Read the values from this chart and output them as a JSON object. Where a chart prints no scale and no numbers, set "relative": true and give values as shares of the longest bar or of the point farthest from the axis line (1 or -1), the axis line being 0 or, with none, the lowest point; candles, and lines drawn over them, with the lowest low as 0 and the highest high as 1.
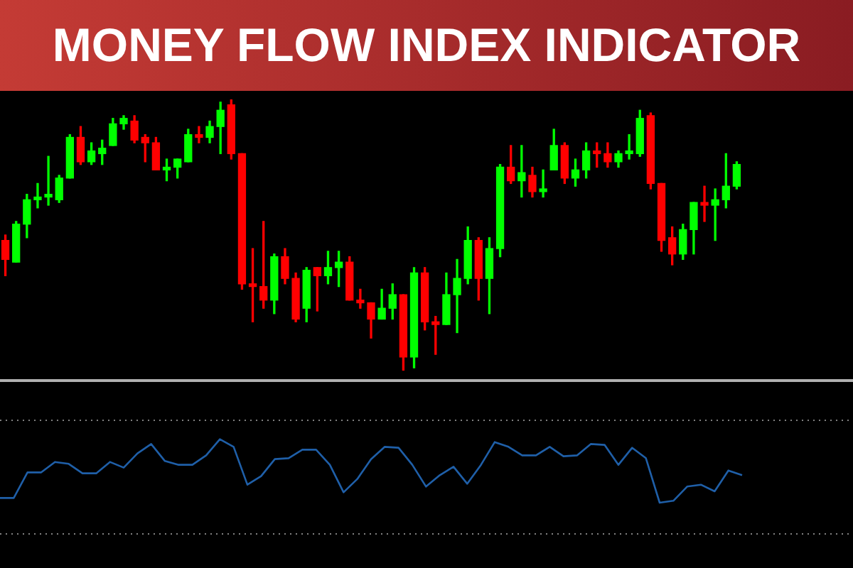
{
  "chart_data": [
    {
      "type": "candlestick",
      "title": "MONEY FLOW INDEX INDICATOR",
      "relative": true,
      "tick_labels": false,
      "categories": [
        null,
        null,
        null,
        null,
        null,
        null,
        null,
        null,
        null,
        null,
        null,
        null,
        null,
        null,
        null,
        null,
        null,
        null,
        null,
        null,
        null,
        null,
        null,
        null,
        null,
        null,
        null,
        null,
        null,
        null,
        null,
        null,
        null,
        null,
        null,
        null,
        null,
        null,
        null,
        null,
        null,
        null,
        null,
        null,
        null,
        null,
        null,
        null,
        null,
        null,
        null,
        null,
        null,
        null,
        null,
        null,
        null,
        null,
        null,
        null,
        null,
        null,
        null,
        null,
        null,
        null,
        null,
        null,
        null
      ],
      "ohlc": [
        [
          0.48,
          0.5,
          0.35,
          0.41
        ],
        [
          0.4,
          0.55,
          0.4,
          0.54
        ],
        [
          0.54,
          0.65,
          0.49,
          0.63
        ],
        [
          0.63,
          0.69,
          0.6,
          0.64
        ],
        [
          0.64,
          0.79,
          0.61,
          0.65
        ],
        [
          0.63,
          0.72,
          0.62,
          0.71
        ],
        [
          0.71,
          0.87,
          0.71,
          0.86
        ],
        [
          0.86,
          0.9,
          0.76,
          0.77
        ],
        [
          0.77,
          0.84,
          0.76,
          0.81
        ],
        [
          0.8,
          0.85,
          0.76,
          0.82
        ],
        [
          0.83,
          0.93,
          0.83,
          0.91
        ],
        [
          0.91,
          0.94,
          0.89,
          0.93
        ],
        [
          0.92,
          0.94,
          0.84,
          0.85
        ],
        [
          0.86,
          0.87,
          0.77,
          0.84
        ],
        [
          0.84,
          0.86,
          0.74,
          0.74
        ],
        [
          0.74,
          0.78,
          0.7,
          0.75
        ],
        [
          0.75,
          0.78,
          0.71,
          0.78
        ],
        [
          0.77,
          0.89,
          0.77,
          0.87
        ],
        [
          0.87,
          0.9,
          0.84,
          0.86
        ],
        [
          0.86,
          0.92,
          0.84,
          0.9
        ],
        [
          0.9,
          0.99,
          0.8,
          0.96
        ],
        [
          0.98,
          1,
          0.78,
          0.8
        ],
        [
          0.8,
          0.8,
          0.3,
          0.32
        ],
        [
          0.32,
          0.45,
          0.18,
          0.31
        ],
        [
          0.31,
          0.55,
          0.23,
          0.26
        ],
        [
          0.26,
          0.43,
          0.21,
          0.42
        ],
        [
          0.42,
          0.45,
          0.32,
          0.34
        ],
        [
          0.34,
          0.36,
          0.18,
          0.19
        ],
        [
          0.23,
          0.38,
          0.18,
          0.37
        ],
        [
          0.38,
          0.38,
          0.22,
          0.35
        ],
        [
          0.35,
          0.44,
          0.32,
          0.38
        ],
        [
          0.38,
          0.44,
          0.31,
          0.4
        ],
        [
          0.4,
          0.42,
          0.26,
          0.26
        ],
        [
          0.26,
          0.3,
          0.23,
          0.25
        ],
        [
          0.25,
          0.25,
          0.12,
          0.19
        ],
        [
          0.19,
          0.3,
          0.19,
          0.23
        ],
        [
          0.23,
          0.32,
          0.19,
          0.28
        ],
        [
          0.28,
          0.28,
          0,
          0.05
        ],
        [
          0.05,
          0.38,
          0.01,
          0.36
        ],
        [
          0.36,
          0.38,
          0.15,
          0.18
        ],
        [
          0.18,
          0.2,
          0.06,
          0.17
        ],
        [
          0.17,
          0.36,
          0.17,
          0.28
        ],
        [
          0.28,
          0.41,
          0.14,
          0.34
        ],
        [
          0.34,
          0.53,
          0.32,
          0.48
        ],
        [
          0.48,
          0.49,
          0.26,
          0.34
        ],
        [
          0.34,
          0.49,
          0.21,
          0.45
        ],
        [
          0.45,
          0.76,
          0.42,
          0.75
        ],
        [
          0.75,
          0.83,
          0.69,
          0.7
        ],
        [
          0.7,
          0.83,
          0.64,
          0.73
        ],
        [
          0.72,
          0.75,
          0.64,
          0.66
        ],
        [
          0.66,
          0.74,
          0.64,
          0.67
        ],
        [
          0.74,
          0.89,
          0.74,
          0.83
        ],
        [
          0.83,
          0.84,
          0.69,
          0.71
        ],
        [
          0.71,
          0.78,
          0.68,
          0.74
        ],
        [
          0.74,
          0.84,
          0.71,
          0.81
        ],
        [
          0.81,
          0.84,
          0.75,
          0.8
        ],
        [
          0.8,
          0.84,
          0.75,
          0.77
        ],
        [
          0.77,
          0.81,
          0.75,
          0.8
        ],
        [
          0.8,
          0.87,
          0.78,
          0.81
        ],
        [
          0.8,
          0.96,
          0.79,
          0.93
        ],
        [
          0.94,
          0.95,
          0.67,
          0.69
        ],
        [
          0.69,
          0.69,
          0.44,
          0.48
        ],
        [
          0.49,
          0.53,
          0.39,
          0.43
        ],
        [
          0.43,
          0.54,
          0.41,
          0.52
        ],
        [
          0.52,
          0.62,
          0.43,
          0.62
        ],
        [
          0.62,
          0.68,
          0.55,
          0.61
        ],
        [
          0.61,
          0.67,
          0.48,
          0.63
        ],
        [
          0.63,
          0.8,
          0.6,
          0.68
        ],
        [
          0.68,
          0.77,
          0.67,
          0.76
        ]
      ],
      "colors": [
        "#ff0000",
        "#00ff00",
        "#00ff00",
        "#00ff00",
        "#00ff00",
        "#00ff00",
        "#00ff00",
        "#ff0000",
        "#00ff00",
        "#00ff00",
        "#00ff00",
        "#00ff00",
        "#ff0000",
        "#ff0000",
        "#ff0000",
        "#00ff00",
        "#00ff00",
        "#00ff00",
        "#ff0000",
        "#00ff00",
        "#00ff00",
        "#ff0000",
        "#ff0000",
        "#ff0000",
        "#ff0000",
        "#00ff00",
        "#ff0000",
        "#ff0000",
        "#00ff00",
        "#ff0000",
        "#00ff00",
        "#00ff00",
        "#ff0000",
        "#ff0000",
        "#ff0000",
        "#00ff00",
        "#00ff00",
        "#ff0000",
        "#00ff00",
        "#ff0000",
        "#ff0000",
        "#00ff00",
        "#00ff00",
        "#00ff00",
        "#ff0000",
        "#00ff00",
        "#00ff00",
        "#ff0000",
        "#00ff00",
        "#ff0000",
        "#00ff00",
        "#00ff00",
        "#ff0000",
        "#00ff00",
        "#00ff00",
        "#ff0000",
        "#ff0000",
        "#00ff00",
        "#00ff00",
        "#00ff00",
        "#ff0000",
        "#ff0000",
        "#ff0000",
        "#00ff00",
        "#00ff00",
        "#ff0000",
        "#00ff00",
        "#00ff00",
        "#00ff00"
      ]
    },
    {
      "type": "line",
      "relative": true,
      "tick_labels": false,
      "categories": [
        null,
        null,
        null,
        null,
        null,
        null,
        null,
        null,
        null,
        null,
        null,
        null,
        null,
        null,
        null,
        null,
        null,
        null,
        null,
        null,
        null,
        null,
        null,
        null,
        null,
        null,
        null,
        null,
        null,
        null,
        null,
        null,
        null,
        null,
        null,
        null,
        null,
        null,
        null,
        null,
        null,
        null,
        null,
        null,
        null,
        null,
        null,
        null,
        null,
        null,
        null,
        null,
        null,
        null,
        null
      ],
      "series": [
        {
          "color": "#1f5fa8",
          "values": [
            0.38,
            0.38,
            0.65,
            0.65,
            0.76,
            0.74,
            0.64,
            0.64,
            0.76,
            0.7,
            0.85,
            0.95,
            0.77,
            0.73,
            0.73,
            0.83,
            1,
            0.92,
            0.52,
            0.61,
            0.79,
            0.8,
            0.89,
            0.89,
            0.73,
            0.44,
            0.58,
            0.79,
            0.92,
            0.91,
            0.73,
            0.5,
            0.62,
            0.71,
            0.53,
            0.73,
            0.97,
            0.92,
            0.83,
            0.83,
            0.92,
            0.82,
            0.83,
            0.95,
            0.94,
            0.73,
            0.91,
            0.8,
            0.33,
            0.35,
            0.5,
            0.52,
            0.45,
            0.67,
            0.62
          ]
        }
      ],
      "ref_lines": [
        {
          "axis": "y",
          "value": 1.2,
          "color": "#808080",
          "line_style": "dotted"
        },
        {
          "axis": "y",
          "value": 0,
          "color": "#808080",
          "line_style": "dotted"
        }
      ]
    }
  ]
}
